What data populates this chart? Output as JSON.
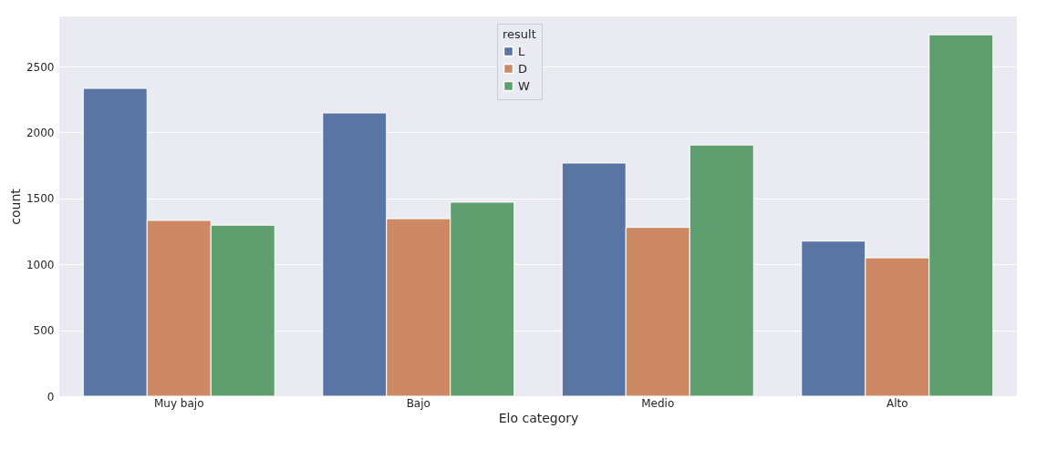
{
  "chart_data": {
    "type": "bar",
    "xlabel": "Elo category",
    "ylabel": "count",
    "legend_title": "result",
    "categories": [
      "Muy bajo",
      "Bajo",
      "Medio",
      "Alto"
    ],
    "series": [
      {
        "name": "L",
        "color": "#5875a4",
        "values": [
          2334,
          2148,
          1768,
          1176
        ]
      },
      {
        "name": "D",
        "color": "#cc8963",
        "values": [
          1333,
          1346,
          1280,
          1049
        ]
      },
      {
        "name": "W",
        "color": "#5f9e6e",
        "values": [
          1297,
          1471,
          1905,
          2741
        ]
      }
    ],
    "ylim": [
      0,
      2880
    ],
    "yticks": [
      0,
      500,
      1000,
      1500,
      2000,
      2500
    ],
    "grid": "y",
    "legend": "top"
  }
}
